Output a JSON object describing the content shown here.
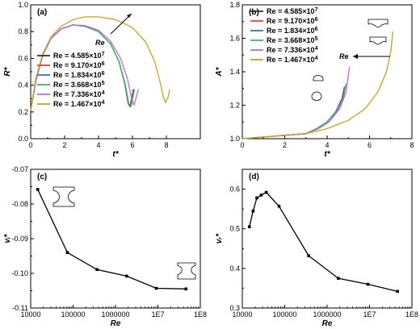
{
  "chart_data": [
    {
      "panel": "(a)",
      "type": "line",
      "xlabel": "t*",
      "ylabel": "R*",
      "xlim": [
        0,
        10
      ],
      "ylim": [
        0.0,
        1.0
      ],
      "xticks": [
        0,
        2,
        4,
        6,
        8
      ],
      "xtick_labels": [
        "0",
        "2",
        "4",
        "6",
        "8"
      ],
      "yticks": [
        0.0,
        0.2,
        0.4,
        0.6,
        0.8,
        1.0
      ],
      "ytick_labels": [
        "0.0",
        "0.2",
        "0.4",
        "0.6",
        "0.8",
        "1.0"
      ],
      "grid": false,
      "legend": "center-left",
      "annotation": "Re",
      "series": [
        {
          "name": "Re = 4.585×10",
          "exp": "7",
          "color": "#333333",
          "points": [
            [
              0,
              0.21
            ],
            [
              0.3,
              0.43
            ],
            [
              0.7,
              0.62
            ],
            [
              1.2,
              0.75
            ],
            [
              1.8,
              0.82
            ],
            [
              2.5,
              0.85
            ],
            [
              3.2,
              0.84
            ],
            [
              4.0,
              0.8
            ],
            [
              4.7,
              0.71
            ],
            [
              5.2,
              0.58
            ],
            [
              5.55,
              0.41
            ],
            [
              5.75,
              0.26
            ],
            [
              5.85,
              0.24
            ],
            [
              5.95,
              0.3
            ],
            [
              6.05,
              0.37
            ]
          ]
        },
        {
          "name": "Re = 9.170×10",
          "exp": "6",
          "color": "#e8423f",
          "points": [
            [
              0,
              0.21
            ],
            [
              0.3,
              0.43
            ],
            [
              0.7,
              0.62
            ],
            [
              1.2,
              0.75
            ],
            [
              1.8,
              0.82
            ],
            [
              2.5,
              0.85
            ],
            [
              3.2,
              0.84
            ],
            [
              4.0,
              0.8
            ],
            [
              4.7,
              0.71
            ],
            [
              5.2,
              0.58
            ],
            [
              5.55,
              0.41
            ],
            [
              5.75,
              0.26
            ],
            [
              5.87,
              0.24
            ],
            [
              5.97,
              0.3
            ],
            [
              6.07,
              0.37
            ]
          ]
        },
        {
          "name": "Re = 1.834×10",
          "exp": "6",
          "color": "#3d6fcf",
          "points": [
            [
              0,
              0.21
            ],
            [
              0.3,
              0.43
            ],
            [
              0.7,
              0.62
            ],
            [
              1.2,
              0.75
            ],
            [
              1.8,
              0.82
            ],
            [
              2.5,
              0.85
            ],
            [
              3.2,
              0.84
            ],
            [
              4.0,
              0.8
            ],
            [
              4.7,
              0.71
            ],
            [
              5.2,
              0.58
            ],
            [
              5.56,
              0.41
            ],
            [
              5.77,
              0.26
            ],
            [
              5.9,
              0.24
            ],
            [
              6.0,
              0.3
            ],
            [
              6.1,
              0.37
            ]
          ]
        },
        {
          "name": "Re = 3.668×10",
          "exp": "5",
          "color": "#3dbb55",
          "points": [
            [
              0,
              0.21
            ],
            [
              0.3,
              0.43
            ],
            [
              0.7,
              0.62
            ],
            [
              1.2,
              0.75
            ],
            [
              1.8,
              0.82
            ],
            [
              2.5,
              0.85
            ],
            [
              3.2,
              0.84
            ],
            [
              4.0,
              0.8
            ],
            [
              4.7,
              0.71
            ],
            [
              5.2,
              0.58
            ],
            [
              5.57,
              0.41
            ],
            [
              5.79,
              0.26
            ],
            [
              5.92,
              0.24
            ],
            [
              6.02,
              0.3
            ],
            [
              6.12,
              0.37
            ]
          ]
        },
        {
          "name": "Re = 7.336×10",
          "exp": "4",
          "color": "#b36ee6",
          "points": [
            [
              0,
              0.21
            ],
            [
              0.3,
              0.43
            ],
            [
              0.7,
              0.62
            ],
            [
              1.2,
              0.75
            ],
            [
              1.8,
              0.82
            ],
            [
              2.5,
              0.85
            ],
            [
              3.2,
              0.845
            ],
            [
              4.0,
              0.81
            ],
            [
              4.7,
              0.73
            ],
            [
              5.3,
              0.6
            ],
            [
              5.7,
              0.45
            ],
            [
              5.95,
              0.3
            ],
            [
              6.1,
              0.25
            ],
            [
              6.2,
              0.3
            ],
            [
              6.35,
              0.37
            ]
          ]
        },
        {
          "name": "Re = 1.467×10",
          "exp": "4",
          "color": "#c9a320",
          "points": [
            [
              0,
              0.21
            ],
            [
              0.3,
              0.45
            ],
            [
              0.7,
              0.63
            ],
            [
              1.2,
              0.76
            ],
            [
              1.8,
              0.84
            ],
            [
              2.5,
              0.89
            ],
            [
              3.2,
              0.91
            ],
            [
              4.0,
              0.91
            ],
            [
              5.0,
              0.89
            ],
            [
              6.0,
              0.83
            ],
            [
              6.8,
              0.72
            ],
            [
              7.3,
              0.58
            ],
            [
              7.6,
              0.44
            ],
            [
              7.8,
              0.32
            ],
            [
              7.95,
              0.27
            ],
            [
              8.1,
              0.31
            ],
            [
              8.2,
              0.37
            ]
          ]
        }
      ]
    },
    {
      "panel": "(b)",
      "type": "line",
      "xlabel": "t*",
      "ylabel": "A*",
      "xlim": [
        0,
        8
      ],
      "ylim": [
        1.0,
        1.8
      ],
      "xticks": [
        0,
        2,
        4,
        6,
        8
      ],
      "xtick_labels": [
        "0",
        "2",
        "4",
        "6",
        "8"
      ],
      "yticks": [
        1.0,
        1.2,
        1.4,
        1.6,
        1.8
      ],
      "ytick_labels": [
        "1.0",
        "1.2",
        "1.4",
        "1.6",
        "1.8"
      ],
      "grid": false,
      "legend": "top-left",
      "annotation": "Re",
      "series": [
        {
          "name": "Re = 4.585×10",
          "exp": "7",
          "color": "#333333",
          "points": [
            [
              0,
              1.0
            ],
            [
              1.0,
              1.01
            ],
            [
              2.0,
              1.02
            ],
            [
              3.0,
              1.03
            ],
            [
              3.5,
              1.06
            ],
            [
              4.0,
              1.1
            ],
            [
              4.4,
              1.16
            ],
            [
              4.7,
              1.24
            ],
            [
              4.82,
              1.31
            ]
          ]
        },
        {
          "name": "Re = 9.170×10",
          "exp": "6",
          "color": "#e8423f",
          "points": [
            [
              0,
              1.0
            ],
            [
              1.0,
              1.01
            ],
            [
              2.0,
              1.02
            ],
            [
              3.0,
              1.03
            ],
            [
              3.5,
              1.06
            ],
            [
              4.0,
              1.1
            ],
            [
              4.4,
              1.16
            ],
            [
              4.72,
              1.24
            ],
            [
              4.85,
              1.31
            ]
          ]
        },
        {
          "name": "Re = 1.834×10",
          "exp": "6",
          "color": "#3d6fcf",
          "points": [
            [
              0,
              1.0
            ],
            [
              1.0,
              1.01
            ],
            [
              2.0,
              1.02
            ],
            [
              3.0,
              1.03
            ],
            [
              3.5,
              1.06
            ],
            [
              4.0,
              1.1
            ],
            [
              4.42,
              1.16
            ],
            [
              4.74,
              1.24
            ],
            [
              4.87,
              1.32
            ]
          ]
        },
        {
          "name": "Re = 3.668×10",
          "exp": "5",
          "color": "#3dbb55",
          "points": [
            [
              0,
              1.0
            ],
            [
              1.0,
              1.01
            ],
            [
              2.0,
              1.02
            ],
            [
              3.0,
              1.03
            ],
            [
              3.5,
              1.06
            ],
            [
              4.0,
              1.1
            ],
            [
              4.45,
              1.16
            ],
            [
              4.76,
              1.24
            ],
            [
              4.9,
              1.33
            ]
          ]
        },
        {
          "name": "Re = 7.336×10",
          "exp": "4",
          "color": "#b36ee6",
          "points": [
            [
              0,
              1.0
            ],
            [
              1.0,
              1.01
            ],
            [
              2.0,
              1.02
            ],
            [
              3.0,
              1.03
            ],
            [
              3.6,
              1.06
            ],
            [
              4.1,
              1.1
            ],
            [
              4.6,
              1.18
            ],
            [
              4.9,
              1.28
            ],
            [
              5.05,
              1.43
            ]
          ]
        },
        {
          "name": "Re = 1.467×10",
          "exp": "4",
          "color": "#c9a320",
          "points": [
            [
              0,
              1.0
            ],
            [
              1.0,
              1.01
            ],
            [
              2.0,
              1.02
            ],
            [
              3.0,
              1.03
            ],
            [
              4.0,
              1.06
            ],
            [
              5.0,
              1.11
            ],
            [
              5.8,
              1.18
            ],
            [
              6.4,
              1.28
            ],
            [
              6.8,
              1.4
            ],
            [
              7.0,
              1.52
            ],
            [
              7.1,
              1.64
            ]
          ]
        }
      ]
    },
    {
      "panel": "(c)",
      "type": "line",
      "xlabel": "Re",
      "ylabel": "vᵢ*",
      "xscale": "log",
      "xlim": [
        10000,
        100000000
      ],
      "ylim": [
        -0.11,
        -0.07
      ],
      "xticks": [
        10000,
        100000,
        1000000,
        10000000,
        100000000
      ],
      "xtick_labels": [
        "10000",
        "100000",
        "1000000",
        "1E7",
        "1E8"
      ],
      "yticks": [
        -0.11,
        -0.1,
        -0.09,
        -0.08,
        -0.07
      ],
      "ytick_labels": [
        "-0.11",
        "-0.10",
        "-0.09",
        "-0.08",
        "-0.07"
      ],
      "grid": false,
      "x": [
        14670,
        73360,
        366800,
        1834000,
        9170000,
        45850000
      ],
      "values": [
        -0.0758,
        -0.094,
        -0.0989,
        -0.1008,
        -0.1043,
        -0.1045
      ]
    },
    {
      "panel": "(d)",
      "type": "line",
      "xlabel": "Re",
      "ylabel": "vᵣ*",
      "xscale": "log",
      "xlim": [
        10000,
        100000000
      ],
      "ylim": [
        0.3,
        0.65
      ],
      "xticks": [
        10000,
        100000,
        1000000,
        10000000,
        100000000
      ],
      "xtick_labels": [
        "10000",
        "100000",
        "1000000",
        "1E7",
        "1E8"
      ],
      "yticks": [
        0.3,
        0.4,
        0.5,
        0.6
      ],
      "ytick_labels": [
        "0.3",
        "0.4",
        "0.5",
        "0.6"
      ],
      "grid": false,
      "x": [
        14670,
        18000,
        22000,
        28000,
        36680,
        73360,
        366800,
        1834000,
        9170000,
        45850000
      ],
      "values": [
        0.505,
        0.545,
        0.578,
        0.585,
        0.592,
        0.557,
        0.432,
        0.375,
        0.36,
        0.342
      ]
    }
  ]
}
